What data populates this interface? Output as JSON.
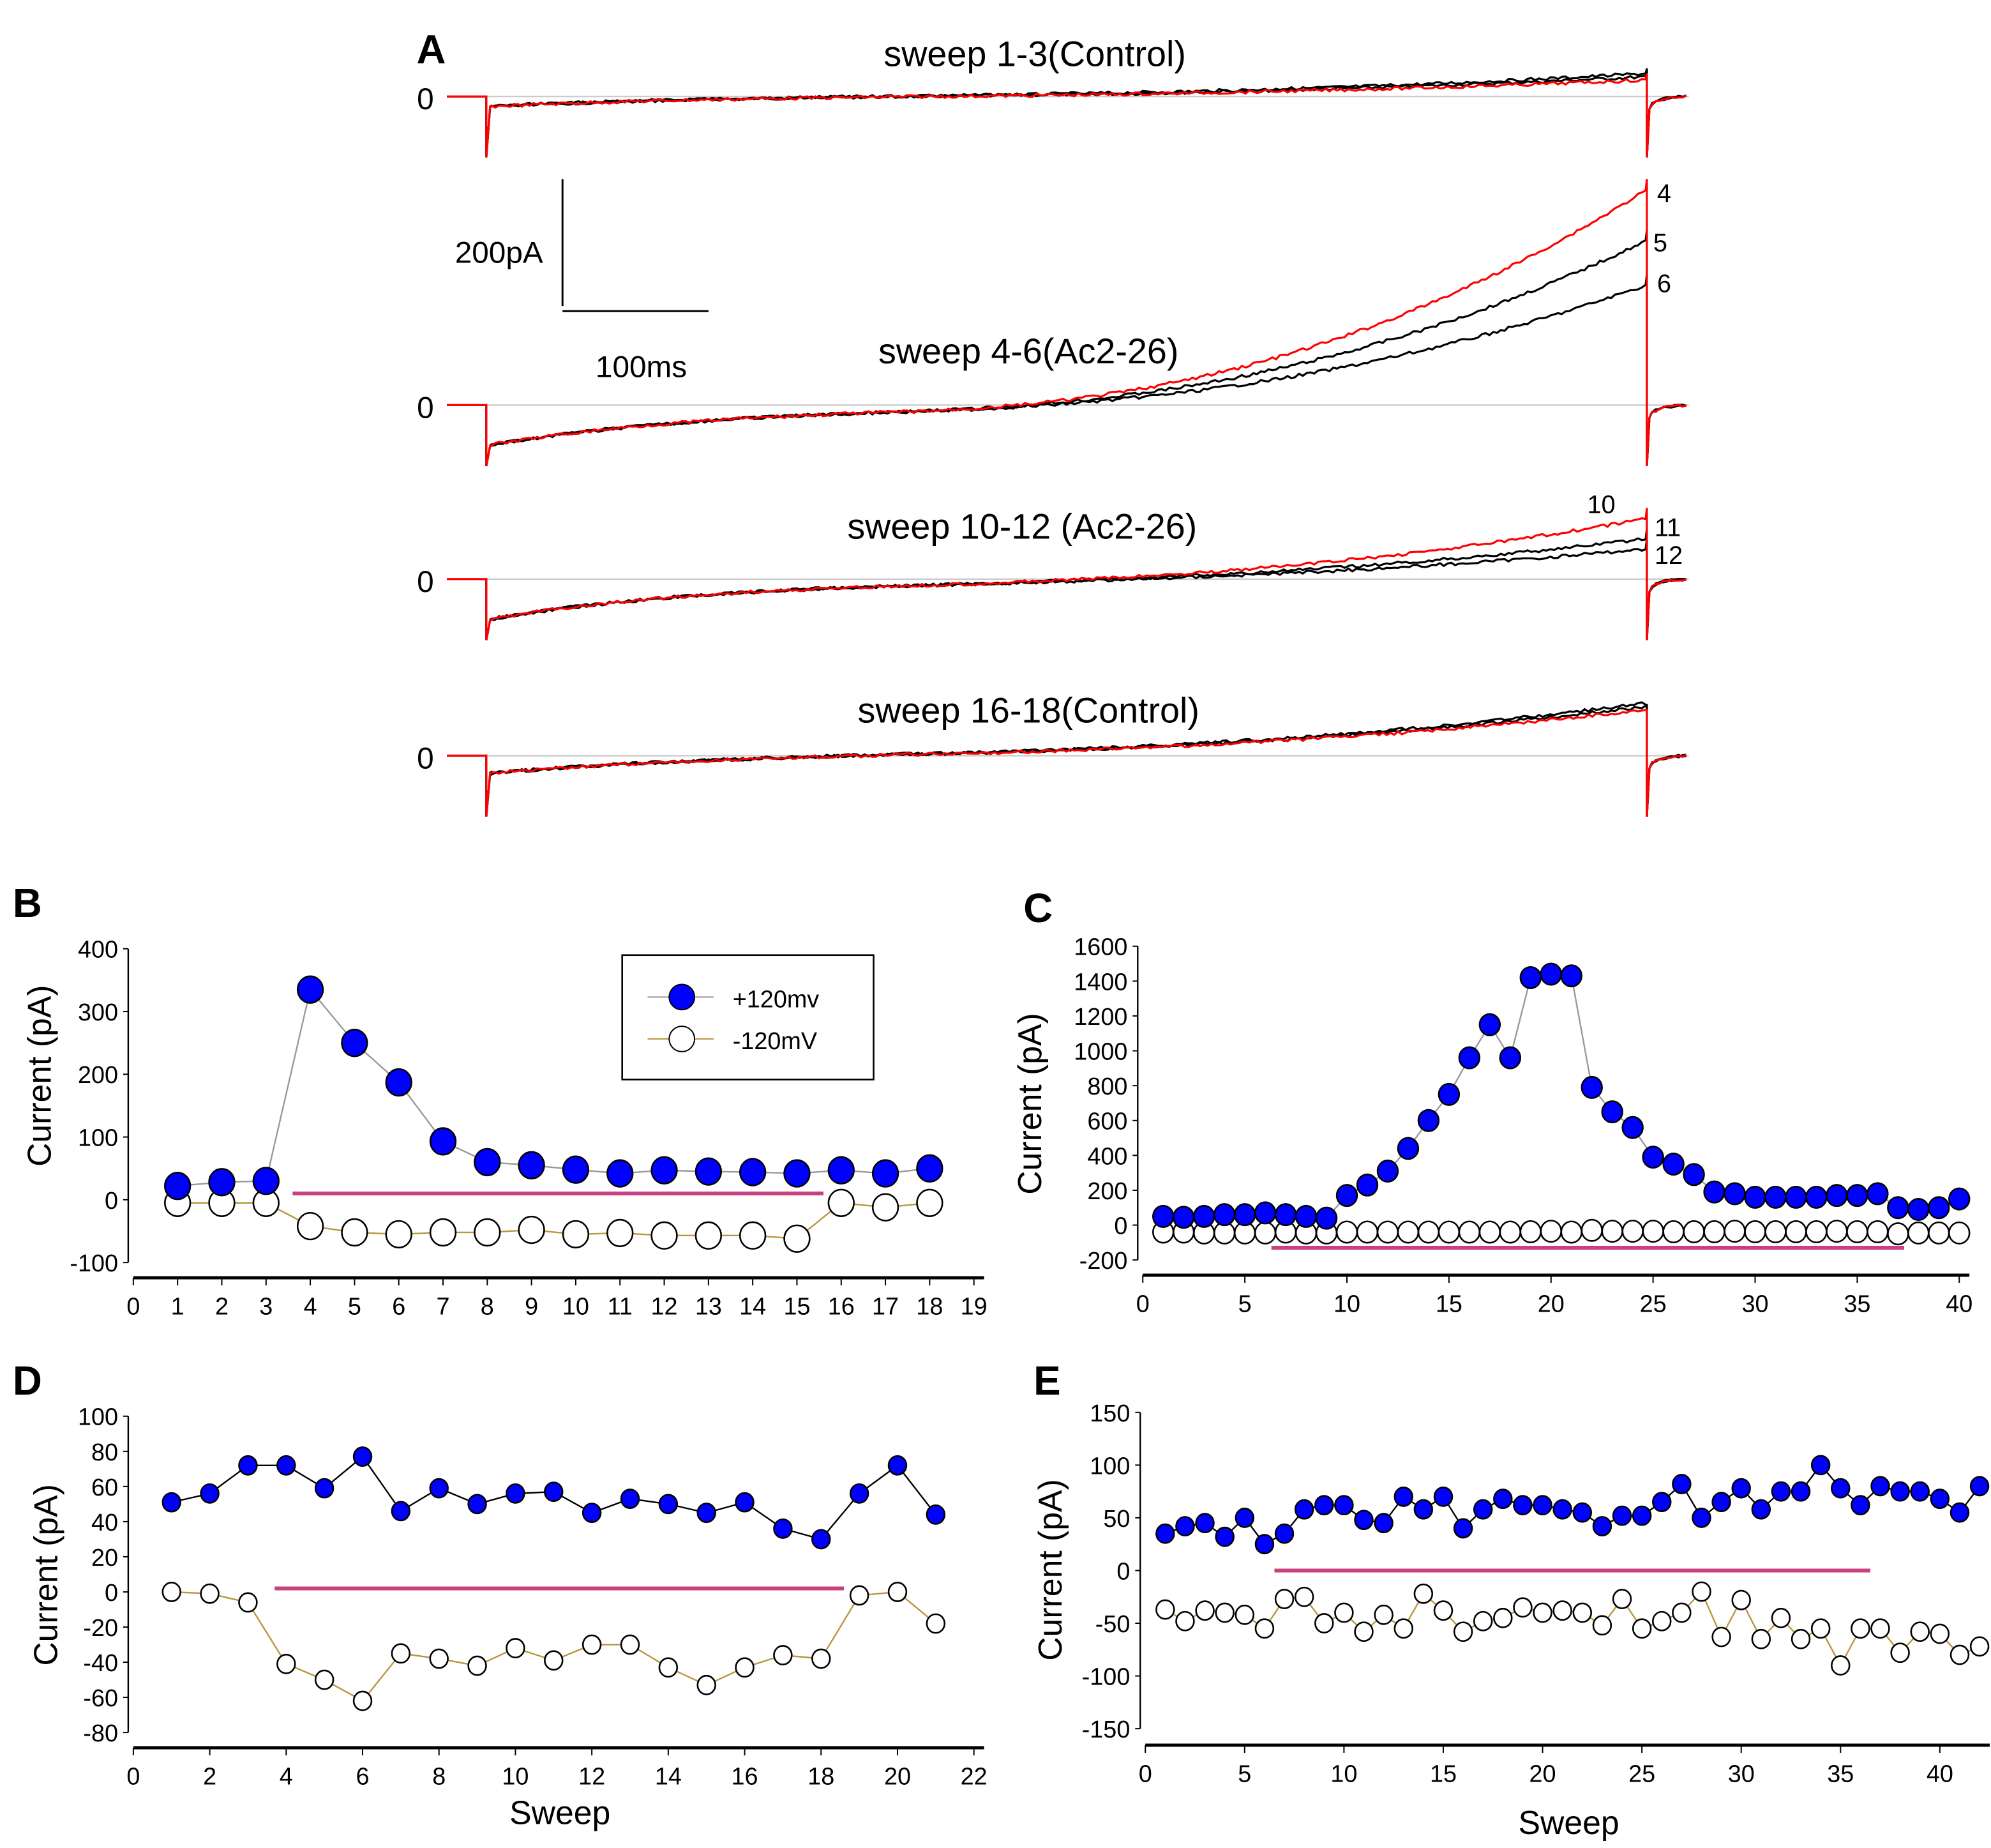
{
  "chart_data": [
    {
      "panel": "A",
      "type": "line",
      "traces": [
        {
          "title": "sweep 1-3(Control)",
          "zero_label": "0",
          "sweep_labels": []
        },
        {
          "title": "sweep 4-6(Ac2-26)",
          "zero_label": "0",
          "sweep_labels": [
            "4",
            "5",
            "6"
          ]
        },
        {
          "title": "sweep 10-12 (Ac2-26)",
          "zero_label": "0",
          "sweep_labels": [
            "10",
            "11",
            "12"
          ]
        },
        {
          "title": "sweep 16-18(Control)",
          "zero_label": "0",
          "sweep_labels": []
        }
      ],
      "scale_bar": {
        "current": "200pA",
        "time": "100ms"
      },
      "colors": {
        "first_sweep": "#ff0000",
        "other_sweeps": "#000000"
      }
    },
    {
      "panel": "B",
      "type": "scatter",
      "ylabel": "Current (pA)",
      "xlabel": "",
      "xlim": [
        0,
        19
      ],
      "ylim": [
        -100,
        400
      ],
      "xticks": [
        "0",
        "1",
        "2",
        "3",
        "4",
        "5",
        "6",
        "7",
        "8",
        "9",
        "10",
        "11",
        "12",
        "13",
        "14",
        "15",
        "16",
        "17",
        "18",
        "19"
      ],
      "yticks": [
        "-100",
        "0",
        "100",
        "200",
        "300",
        "400"
      ],
      "legend": {
        "position": "top-right",
        "entries": [
          "+120mv",
          "-120mV"
        ]
      },
      "drug_bar": [
        3.6,
        15.6,
        10
      ],
      "x": [
        1,
        2,
        3,
        4,
        5,
        6,
        7,
        8,
        9,
        10,
        11,
        12,
        13,
        14,
        15,
        16,
        17,
        18
      ],
      "series": [
        {
          "name": "+120mv",
          "values": [
            22,
            28,
            30,
            335,
            250,
            187,
            93,
            60,
            55,
            48,
            42,
            47,
            45,
            44,
            42,
            47,
            42,
            50
          ]
        },
        {
          "name": "-120mV",
          "values": [
            -5,
            -5,
            -5,
            -42,
            -52,
            -55,
            -52,
            -52,
            -48,
            -55,
            -53,
            -57,
            -57,
            -57,
            -62,
            -5,
            -12,
            -5
          ]
        }
      ]
    },
    {
      "panel": "C",
      "type": "scatter",
      "ylabel": "Current (pA)",
      "xlabel": "",
      "xlim": [
        0,
        40
      ],
      "ylim": [
        -200,
        1600
      ],
      "xticks": [
        "0",
        "5",
        "10",
        "15",
        "20",
        "25",
        "30",
        "35",
        "40"
      ],
      "yticks": [
        "-200",
        "0",
        "200",
        "400",
        "600",
        "800",
        "1000",
        "1200",
        "1400",
        "1600"
      ],
      "drug_bar": [
        6.3,
        37.3,
        -130
      ],
      "x": [
        1,
        2,
        3,
        4,
        5,
        6,
        7,
        8,
        9,
        10,
        11,
        12,
        13,
        14,
        15,
        16,
        17,
        18,
        19,
        20,
        21,
        22,
        23,
        24,
        25,
        26,
        27,
        28,
        29,
        30,
        31,
        32,
        33,
        34,
        35,
        36,
        37,
        38,
        39,
        40
      ],
      "series": [
        {
          "name": "+120mv",
          "values": [
            50,
            45,
            50,
            60,
            60,
            70,
            60,
            50,
            40,
            170,
            230,
            310,
            440,
            600,
            750,
            960,
            1150,
            960,
            1420,
            1440,
            1430,
            790,
            650,
            560,
            390,
            350,
            290,
            190,
            180,
            160,
            160,
            160,
            160,
            170,
            170,
            180,
            100,
            90,
            100,
            150
          ]
        },
        {
          "name": "-120mV",
          "values": [
            -40,
            -40,
            -45,
            -45,
            -45,
            -45,
            -40,
            -45,
            -45,
            -40,
            -40,
            -40,
            -40,
            -40,
            -40,
            -40,
            -40,
            -40,
            -38,
            -35,
            -40,
            -30,
            -35,
            -35,
            -35,
            -38,
            -38,
            -38,
            -35,
            -38,
            -38,
            -38,
            -38,
            -35,
            -38,
            -38,
            -50,
            -45,
            -45,
            -45
          ]
        }
      ]
    },
    {
      "panel": "D",
      "type": "scatter",
      "ylabel": "Current (pA)",
      "xlabel": "Sweep",
      "xlim": [
        0,
        22
      ],
      "ylim": [
        -80,
        100
      ],
      "xticks": [
        "0",
        "2",
        "4",
        "6",
        "8",
        "10",
        "12",
        "14",
        "16",
        "18",
        "20",
        "22"
      ],
      "yticks": [
        "-80",
        "-60",
        "-40",
        "-20",
        "0",
        "20",
        "40",
        "60",
        "80",
        "100"
      ],
      "drug_bar": [
        3.7,
        18.6,
        2
      ],
      "x": [
        1,
        2,
        3,
        4,
        5,
        6,
        7,
        8,
        9,
        10,
        11,
        12,
        13,
        14,
        15,
        16,
        17,
        18,
        19,
        20,
        21
      ],
      "series": [
        {
          "name": "+120mv",
          "values": [
            51,
            56,
            72,
            72,
            59,
            77,
            46,
            59,
            50,
            56,
            57,
            45,
            53,
            50,
            45,
            51,
            36,
            30,
            56,
            72,
            44
          ]
        },
        {
          "name": "-120mV",
          "values": [
            0,
            -1,
            -6,
            -41,
            -50,
            -62,
            -35,
            -38,
            -42,
            -32,
            -39,
            -30,
            -30,
            -43,
            -53,
            -43,
            -36,
            -38,
            -2,
            0,
            -18
          ]
        }
      ]
    },
    {
      "panel": "E",
      "type": "scatter",
      "ylabel": "Current (pA)",
      "xlabel": "Sweep",
      "xlim": [
        0,
        42
      ],
      "ylim": [
        -150,
        150
      ],
      "xticks": [
        "0",
        "5",
        "10",
        "15",
        "20",
        "25",
        "30",
        "35",
        "40"
      ],
      "yticks": [
        "-150",
        "-100",
        "-50",
        "0",
        "50",
        "100",
        "150"
      ],
      "drug_bar": [
        6.5,
        36.5,
        0
      ],
      "x": [
        1,
        2,
        3,
        4,
        5,
        6,
        7,
        8,
        9,
        10,
        11,
        12,
        13,
        14,
        15,
        16,
        17,
        18,
        19,
        20,
        21,
        22,
        23,
        24,
        25,
        26,
        27,
        28,
        29,
        30,
        31,
        32,
        33,
        34,
        35,
        36,
        37,
        38,
        39,
        40,
        41,
        42
      ],
      "series": [
        {
          "name": "+120mv",
          "values": [
            35,
            42,
            45,
            32,
            50,
            25,
            35,
            58,
            62,
            62,
            48,
            45,
            70,
            58,
            70,
            40,
            58,
            68,
            62,
            62,
            58,
            55,
            42,
            52,
            52,
            65,
            82,
            50,
            65,
            78,
            58,
            75,
            75,
            100,
            78,
            62,
            80,
            75,
            75,
            68,
            55,
            80
          ]
        },
        {
          "name": "-120mV",
          "values": [
            -37,
            -48,
            -38,
            -40,
            -42,
            -55,
            -27,
            -25,
            -50,
            -40,
            -58,
            -42,
            -55,
            -22,
            -38,
            -58,
            -48,
            -45,
            -35,
            -40,
            -38,
            -40,
            -52,
            -27,
            -55,
            -48,
            -40,
            -20,
            -63,
            -28,
            -65,
            -45,
            -65,
            -55,
            -90,
            -55,
            -55,
            -78,
            -58,
            -60,
            -80,
            -72
          ]
        }
      ]
    }
  ],
  "panel_letters": [
    "A",
    "B",
    "C",
    "D",
    "E"
  ],
  "colors": {
    "positive": "#0000ff",
    "drug_bar": "#c8407f",
    "negative_line": "#b8963c",
    "trace_red": "#ff0000"
  }
}
